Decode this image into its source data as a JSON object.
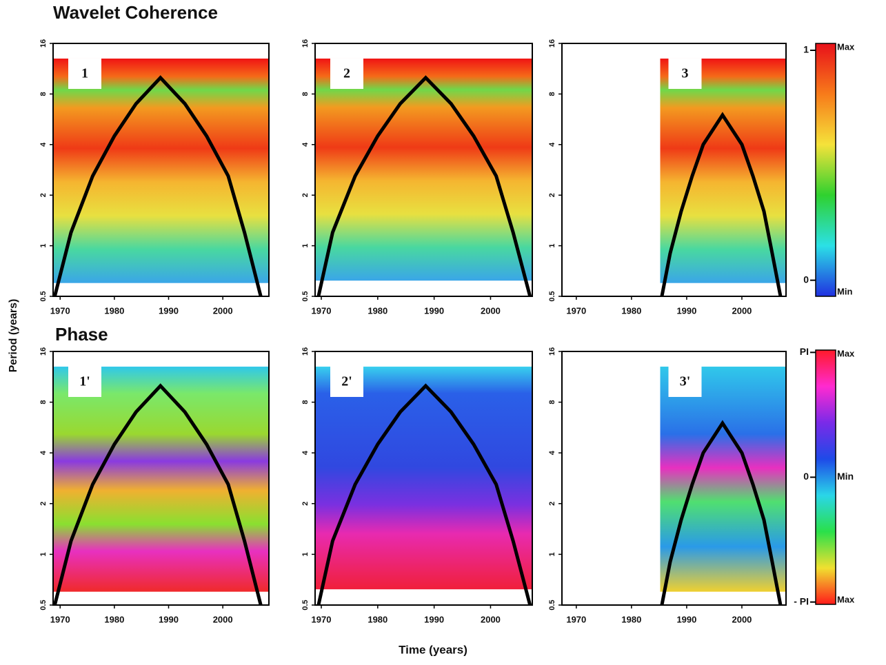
{
  "figure": {
    "title": "Wavelet Coherence",
    "subtitle": "Phase",
    "y_label": "Period (years)",
    "x_label": "Time (years)",
    "colorbars": [
      {
        "name": "coherence",
        "lim": [
          -0.07,
          1.03
        ],
        "ticks": [
          0,
          1
        ],
        "top_label": "Max",
        "bottom_label": "Min",
        "colors": [
          "#e8101a",
          "#f77b1a",
          "#f5e23a",
          "#2fd12f",
          "#2be0e6",
          "#2030e0"
        ]
      },
      {
        "name": "phase",
        "lim": [
          -3.2,
          3.2
        ],
        "ticks": [
          {
            "value": 3.1416,
            "label": "PI"
          },
          {
            "value": 0,
            "label": "0"
          },
          {
            "value": -3.1416,
            "label": "- PI"
          }
        ],
        "top_label": "Max",
        "middle_label": "Min",
        "bottom_label": "Max",
        "colors": [
          "#ff1a2a",
          "#ff2ad0",
          "#7a2ae8",
          "#1e4ae8",
          "#2ad6e8",
          "#2ae04a",
          "#f0e030",
          "#ff1a1a"
        ]
      }
    ]
  },
  "chart_data": [
    {
      "type": "wavelet",
      "label": "1",
      "colormap": "coherence",
      "log_y": true,
      "xlim": [
        1968.7,
        2008.5
      ],
      "ylim": [
        0.5,
        16
      ],
      "xticks": [
        1970,
        1980,
        1990,
        2000
      ],
      "yticks": [
        0.5,
        1,
        2,
        4,
        8,
        16
      ],
      "data_xlim": [
        1968.7,
        2008.5
      ],
      "data_ylim": [
        0.6,
        13
      ],
      "coi": {
        "x": [
          1969,
          1972,
          1976,
          1980,
          1984,
          1988.5,
          1993,
          1997,
          2001,
          2004,
          2007
        ],
        "y": [
          0.5,
          1.2,
          2.6,
          4.5,
          7,
          10,
          7,
          4.5,
          2.6,
          1.2,
          0.5
        ]
      }
    },
    {
      "type": "wavelet",
      "label": "2",
      "colormap": "coherence",
      "log_y": true,
      "xlim": [
        1968.9,
        2007.4
      ],
      "ylim": [
        0.5,
        16
      ],
      "xticks": [
        1970,
        1980,
        1990,
        2000
      ],
      "yticks": [
        0.5,
        1,
        2,
        4,
        8,
        16
      ],
      "data_xlim": [
        1968.9,
        2007.4
      ],
      "data_ylim": [
        0.62,
        13
      ],
      "coi": {
        "x": [
          1969.5,
          1972,
          1976,
          1980,
          1984,
          1988.5,
          1993,
          1997,
          2001,
          2004,
          2007
        ],
        "y": [
          0.5,
          1.2,
          2.6,
          4.5,
          7,
          10,
          7,
          4.5,
          2.6,
          1.2,
          0.5
        ]
      }
    },
    {
      "type": "wavelet",
      "label": "3",
      "colormap": "coherence",
      "log_y": true,
      "xlim": [
        1967.4,
        2008
      ],
      "ylim": [
        0.5,
        16
      ],
      "xticks": [
        1970,
        1980,
        1990,
        2000
      ],
      "yticks": [
        0.5,
        1,
        2,
        4,
        8,
        16
      ],
      "data_xlim": [
        1985.2,
        2008
      ],
      "data_ylim": [
        0.6,
        13
      ],
      "coi": {
        "x": [
          1985.5,
          1987,
          1989,
          1991,
          1993,
          1996.5,
          2000,
          2002,
          2004,
          2005.5,
          2007
        ],
        "y": [
          0.5,
          0.9,
          1.6,
          2.6,
          4,
          6,
          4,
          2.6,
          1.6,
          0.9,
          0.5
        ]
      }
    },
    {
      "type": "wavelet",
      "label": "1'",
      "colormap": "phase",
      "log_y": true,
      "xlim": [
        1968.7,
        2008.5
      ],
      "ylim": [
        0.5,
        16
      ],
      "xticks": [
        1970,
        1980,
        1990,
        2000
      ],
      "yticks": [
        0.5,
        1,
        2,
        4,
        8,
        16
      ],
      "data_xlim": [
        1968.7,
        2008.5
      ],
      "data_ylim": [
        0.6,
        13
      ],
      "coi": {
        "x": [
          1969,
          1972,
          1976,
          1980,
          1984,
          1988.5,
          1993,
          1997,
          2001,
          2004,
          2007
        ],
        "y": [
          0.5,
          1.2,
          2.6,
          4.5,
          7,
          10,
          7,
          4.5,
          2.6,
          1.2,
          0.5
        ]
      }
    },
    {
      "type": "wavelet",
      "label": "2'",
      "colormap": "phase",
      "log_y": true,
      "xlim": [
        1968.9,
        2007.4
      ],
      "ylim": [
        0.5,
        16
      ],
      "xticks": [
        1970,
        1980,
        1990,
        2000
      ],
      "yticks": [
        0.5,
        1,
        2,
        4,
        8,
        16
      ],
      "data_xlim": [
        1968.9,
        2007.4
      ],
      "data_ylim": [
        0.62,
        13
      ],
      "coi": {
        "x": [
          1969.5,
          1972,
          1976,
          1980,
          1984,
          1988.5,
          1993,
          1997,
          2001,
          2004,
          2007
        ],
        "y": [
          0.5,
          1.2,
          2.6,
          4.5,
          7,
          10,
          7,
          4.5,
          2.6,
          1.2,
          0.5
        ]
      }
    },
    {
      "type": "wavelet",
      "label": "3'",
      "colormap": "phase",
      "log_y": true,
      "xlim": [
        1967.4,
        2008
      ],
      "ylim": [
        0.5,
        16
      ],
      "xticks": [
        1970,
        1980,
        1990,
        2000
      ],
      "yticks": [
        0.5,
        1,
        2,
        4,
        8,
        16
      ],
      "data_xlim": [
        1985.2,
        2008
      ],
      "data_ylim": [
        0.6,
        13
      ],
      "coi": {
        "x": [
          1985.5,
          1987,
          1989,
          1991,
          1993,
          1996.5,
          2000,
          2002,
          2004,
          2005.5,
          2007
        ],
        "y": [
          0.5,
          0.9,
          1.6,
          2.6,
          4,
          6,
          4,
          2.6,
          1.6,
          0.9,
          0.5
        ]
      }
    }
  ]
}
